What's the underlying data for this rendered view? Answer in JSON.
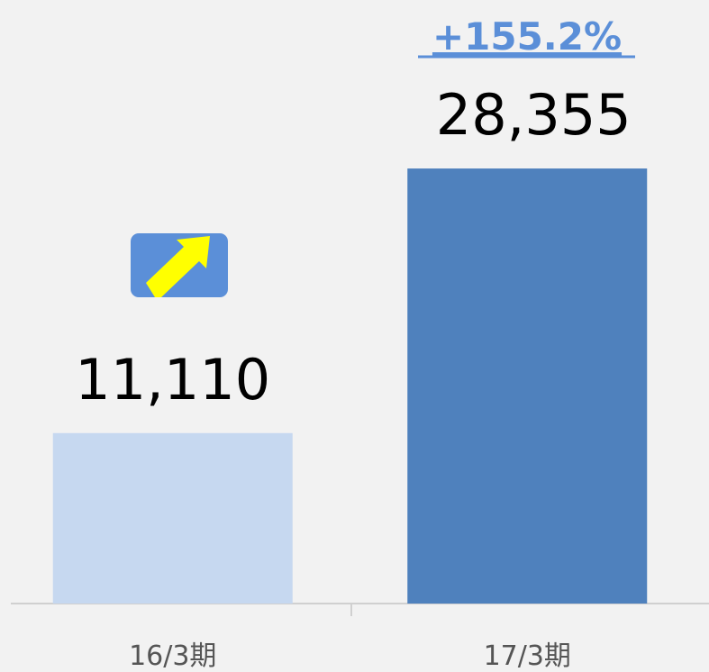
{
  "chart_data": {
    "type": "bar",
    "categories": [
      "16/3期",
      "17/3期"
    ],
    "values": [
      11110,
      28355
    ],
    "value_labels": [
      "11,110",
      "28,355"
    ],
    "colors": [
      "#c6d8f0",
      "#4f81bd"
    ],
    "annotation": "+155.2%",
    "ylim": [
      0,
      38750
    ]
  }
}
